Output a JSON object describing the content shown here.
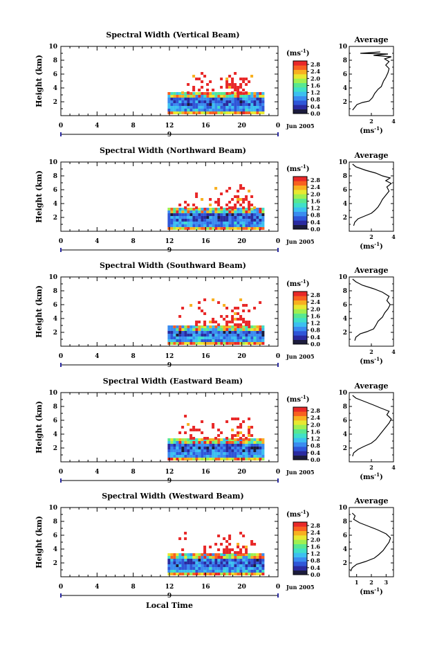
{
  "colors": {
    "colorbar": [
      "#1c1c3c",
      "#2a2aa0",
      "#2f56d8",
      "#3a8cf0",
      "#3cc0f0",
      "#40e0c8",
      "#58e890",
      "#a0f050",
      "#e8e830",
      "#f8b020",
      "#f86020",
      "#e82828"
    ]
  },
  "shared": {
    "x_label": "Local Time",
    "date_label": "Jun 2005",
    "day_label": "9",
    "unit_label": "(ms",
    "unit_sup": "-1",
    "unit_close": ")",
    "y_label": "Height (km)",
    "avg_title": "Average"
  },
  "chart_data": [
    {
      "type": "heatmap",
      "title": "Spectral Width (Vertical Beam)",
      "xlabel": "Local Time",
      "ylabel": "Height (km)",
      "xlim": [
        0,
        24
      ],
      "ylim": [
        0,
        10
      ],
      "x_ticks": [
        "0",
        "4",
        "8",
        "12",
        "16",
        "20",
        "0"
      ],
      "y_ticks": [
        "2",
        "4",
        "6",
        "8",
        "10"
      ],
      "data_x_range": [
        11.8,
        22.3
      ],
      "colorbar": {
        "label": "(ms-1)",
        "ticks": [
          "0.0",
          "0.4",
          "0.8",
          "1.2",
          "1.6",
          "2.0",
          "2.4",
          "2.8"
        ],
        "range": [
          0,
          3.0
        ]
      },
      "low_layer_top_km": 3.3,
      "plume": {
        "x_range": [
          13,
          22
        ],
        "y_range": [
          3.5,
          7.2
        ]
      },
      "average_profile": {
        "xlim": [
          0,
          4
        ],
        "x_ticks": [
          "2",
          "4"
        ],
        "ylim": [
          0,
          10
        ],
        "y_ticks": [
          "2",
          "4",
          "6",
          "8",
          "10"
        ],
        "points": [
          [
            0.3,
            0.8
          ],
          [
            0.5,
            1.2
          ],
          [
            0.7,
            1.6
          ],
          [
            1.2,
            1.9
          ],
          [
            1.8,
            2.1
          ],
          [
            2.1,
            2.6
          ],
          [
            2.3,
            3.2
          ],
          [
            2.6,
            3.8
          ],
          [
            2.9,
            4.2
          ],
          [
            3.1,
            5.0
          ],
          [
            3.3,
            5.5
          ],
          [
            3.5,
            6.2
          ],
          [
            3.6,
            6.8
          ],
          [
            3.3,
            7.3
          ],
          [
            3.6,
            7.8
          ],
          [
            3.2,
            8.2
          ],
          [
            3.8,
            8.5
          ],
          [
            2.2,
            8.7
          ],
          [
            3.5,
            8.9
          ],
          [
            1.0,
            9.0
          ],
          [
            2.8,
            9.2
          ]
        ]
      }
    },
    {
      "type": "heatmap",
      "title": "Spectral Width (Northward Beam)",
      "xlabel": "Local Time",
      "ylabel": "Height (km)",
      "xlim": [
        0,
        24
      ],
      "ylim": [
        0,
        10
      ],
      "x_ticks": [
        "0",
        "4",
        "8",
        "12",
        "16",
        "20",
        "0"
      ],
      "y_ticks": [
        "2",
        "4",
        "6",
        "8",
        "10"
      ],
      "data_x_range": [
        11.8,
        22.3
      ],
      "colorbar": {
        "label": "(ms-1)",
        "ticks": [
          "0.0",
          "0.4",
          "0.8",
          "1.2",
          "1.6",
          "2.0",
          "2.4",
          "2.8"
        ],
        "range": [
          0,
          3.0
        ]
      },
      "low_layer_top_km": 3.5,
      "plume": {
        "x_range": [
          13,
          22
        ],
        "y_range": [
          3.6,
          7.0
        ]
      },
      "average_profile": {
        "xlim": [
          0,
          4
        ],
        "x_ticks": [
          "2",
          "4"
        ],
        "ylim": [
          0,
          10
        ],
        "y_ticks": [
          "2",
          "4",
          "6",
          "8",
          "10"
        ],
        "points": [
          [
            0.4,
            0.8
          ],
          [
            0.5,
            1.3
          ],
          [
            0.8,
            1.8
          ],
          [
            1.4,
            2.2
          ],
          [
            2.0,
            2.6
          ],
          [
            2.3,
            3.0
          ],
          [
            2.6,
            3.5
          ],
          [
            2.8,
            4.0
          ],
          [
            3.0,
            4.6
          ],
          [
            3.3,
            5.2
          ],
          [
            3.6,
            5.8
          ],
          [
            3.4,
            6.4
          ],
          [
            3.8,
            6.9
          ],
          [
            3.3,
            7.3
          ],
          [
            3.7,
            7.7
          ],
          [
            3.0,
            8.0
          ],
          [
            2.4,
            8.4
          ],
          [
            1.5,
            8.8
          ],
          [
            0.6,
            9.3
          ],
          [
            0.3,
            9.7
          ]
        ]
      }
    },
    {
      "type": "heatmap",
      "title": "Spectral Width (Southward Beam)",
      "xlabel": "Local Time",
      "ylabel": "Height (km)",
      "xlim": [
        0,
        24
      ],
      "ylim": [
        0,
        10
      ],
      "x_ticks": [
        "0",
        "4",
        "8",
        "12",
        "16",
        "20",
        "0"
      ],
      "y_ticks": [
        "2",
        "4",
        "6",
        "8",
        "10"
      ],
      "data_x_range": [
        11.8,
        22.3
      ],
      "colorbar": {
        "label": "(ms-1)",
        "ticks": [
          "0.0",
          "0.4",
          "0.8",
          "1.2",
          "1.6",
          "2.0",
          "2.4",
          "2.8"
        ],
        "range": [
          0,
          3.0
        ]
      },
      "low_layer_top_km": 3.2,
      "plume": {
        "x_range": [
          13,
          22
        ],
        "y_range": [
          3.3,
          7.3
        ]
      },
      "average_profile": {
        "xlim": [
          0,
          4
        ],
        "x_ticks": [
          "2",
          "4"
        ],
        "ylim": [
          0,
          10
        ],
        "y_ticks": [
          "2",
          "4",
          "6",
          "8",
          "10"
        ],
        "points": [
          [
            0.5,
            0.8
          ],
          [
            0.6,
            1.3
          ],
          [
            1.0,
            1.8
          ],
          [
            1.6,
            2.1
          ],
          [
            2.2,
            2.5
          ],
          [
            2.4,
            3.0
          ],
          [
            2.6,
            3.6
          ],
          [
            3.0,
            4.2
          ],
          [
            3.2,
            4.8
          ],
          [
            3.5,
            5.4
          ],
          [
            3.7,
            6.0
          ],
          [
            3.4,
            6.6
          ],
          [
            3.6,
            7.2
          ],
          [
            3.0,
            7.8
          ],
          [
            2.2,
            8.3
          ],
          [
            1.2,
            8.8
          ],
          [
            0.6,
            9.3
          ],
          [
            0.3,
            9.7
          ]
        ]
      }
    },
    {
      "type": "heatmap",
      "title": "Spectral Width (Eastward Beam)",
      "xlabel": "Local Time",
      "ylabel": "Height (km)",
      "xlim": [
        0,
        24
      ],
      "ylim": [
        0,
        10
      ],
      "x_ticks": [
        "0",
        "4",
        "8",
        "12",
        "16",
        "20",
        "0"
      ],
      "y_ticks": [
        "2",
        "4",
        "6",
        "8",
        "10"
      ],
      "data_x_range": [
        11.8,
        22.3
      ],
      "colorbar": {
        "label": "(ms-1)",
        "ticks": [
          "0.0",
          "0.4",
          "0.8",
          "1.2",
          "1.6",
          "2.0",
          "2.4",
          "2.8"
        ],
        "range": [
          0,
          3.0
        ]
      },
      "low_layer_top_km": 3.3,
      "plume": {
        "x_range": [
          13,
          22
        ],
        "y_range": [
          3.6,
          7.0
        ]
      },
      "average_profile": {
        "xlim": [
          0,
          4
        ],
        "x_ticks": [
          "2",
          "4"
        ],
        "ylim": [
          0,
          10
        ],
        "y_ticks": [
          "2",
          "4",
          "6",
          "8",
          "10"
        ],
        "points": [
          [
            0.3,
            0.8
          ],
          [
            0.4,
            1.3
          ],
          [
            0.8,
            1.8
          ],
          [
            1.3,
            2.2
          ],
          [
            2.0,
            2.7
          ],
          [
            2.4,
            3.2
          ],
          [
            2.7,
            3.8
          ],
          [
            3.0,
            4.4
          ],
          [
            3.3,
            5.0
          ],
          [
            3.6,
            5.6
          ],
          [
            3.8,
            6.2
          ],
          [
            3.4,
            6.8
          ],
          [
            3.6,
            7.3
          ],
          [
            2.8,
            7.8
          ],
          [
            2.2,
            8.2
          ],
          [
            1.4,
            8.7
          ],
          [
            0.6,
            9.2
          ],
          [
            0.3,
            9.6
          ]
        ]
      }
    },
    {
      "type": "heatmap",
      "title": "Spectral Width (Westward Beam)",
      "xlabel": "Local Time",
      "ylabel": "Height (km)",
      "xlim": [
        0,
        24
      ],
      "ylim": [
        0,
        10
      ],
      "x_ticks": [
        "0",
        "4",
        "8",
        "12",
        "16",
        "20",
        "0"
      ],
      "y_ticks": [
        "2",
        "4",
        "6",
        "8",
        "10"
      ],
      "data_x_range": [
        11.8,
        22.3
      ],
      "colorbar": {
        "label": "(ms-1)",
        "ticks": [
          "0.0",
          "0.4",
          "0.8",
          "1.2",
          "1.6",
          "2.0",
          "2.4",
          "2.8"
        ],
        "range": [
          0,
          3.0
        ]
      },
      "low_layer_top_km": 3.5,
      "plume": {
        "x_range": [
          13,
          21.5
        ],
        "y_range": [
          3.7,
          6.7
        ]
      },
      "average_profile": {
        "xlim": [
          0.5,
          3.5
        ],
        "x_ticks": [
          "1",
          "2",
          "3"
        ],
        "ylim": [
          0,
          10
        ],
        "y_ticks": [
          "2",
          "4",
          "6",
          "8",
          "10"
        ],
        "points": [
          [
            0.6,
            0.8
          ],
          [
            0.7,
            1.3
          ],
          [
            1.0,
            1.8
          ],
          [
            1.6,
            2.2
          ],
          [
            2.2,
            2.7
          ],
          [
            2.5,
            3.2
          ],
          [
            2.8,
            3.8
          ],
          [
            3.0,
            4.4
          ],
          [
            3.2,
            5.0
          ],
          [
            3.3,
            5.6
          ],
          [
            3.0,
            6.2
          ],
          [
            2.4,
            6.8
          ],
          [
            1.8,
            7.3
          ],
          [
            1.2,
            7.8
          ],
          [
            0.8,
            8.3
          ],
          [
            0.9,
            8.8
          ],
          [
            0.7,
            9.2
          ]
        ]
      }
    }
  ]
}
